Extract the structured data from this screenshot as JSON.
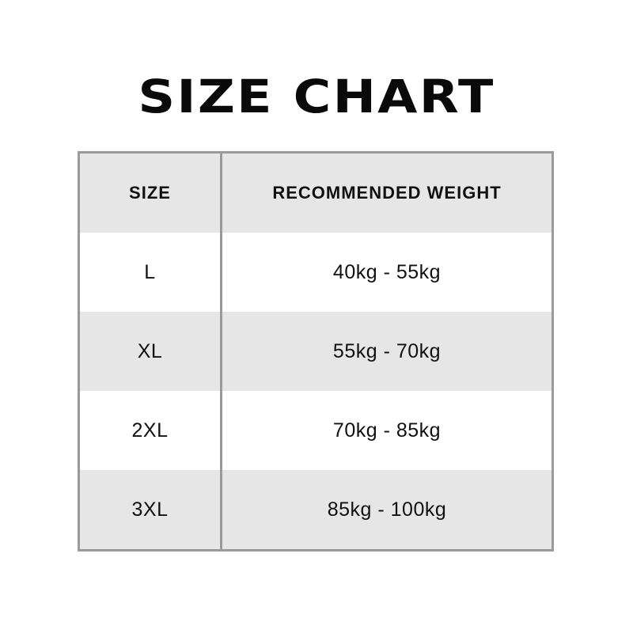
{
  "title": "SIZE CHART",
  "table": {
    "headers": [
      "SIZE",
      "RECOMMENDED WEIGHT"
    ],
    "rows": [
      {
        "size": "L",
        "weight": "40kg - 55kg"
      },
      {
        "size": "XL",
        "weight": "55kg - 70kg"
      },
      {
        "size": "2XL",
        "weight": "70kg - 85kg"
      },
      {
        "size": "3XL",
        "weight": "85kg - 100kg"
      }
    ]
  },
  "colors": {
    "shade": "#e6e6e6",
    "border": "#9a9a9a",
    "text": "#111111"
  }
}
